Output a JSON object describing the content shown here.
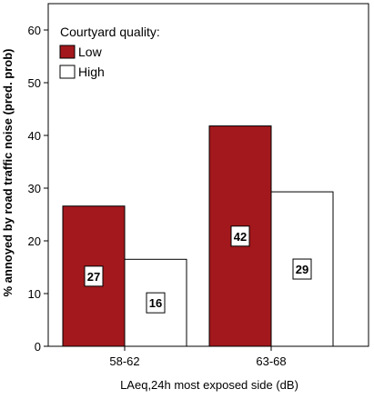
{
  "chart_data": {
    "type": "bar",
    "categories": [
      "58-62",
      "63-68"
    ],
    "series": [
      {
        "name": "Low",
        "values": [
          26.6,
          41.8
        ],
        "labels": [
          "27",
          "42"
        ],
        "color": "#a3181c"
      },
      {
        "name": "High",
        "values": [
          16.5,
          29.3
        ],
        "labels": [
          "16",
          "29"
        ],
        "color": "#ffffff"
      }
    ],
    "legend_title": "Courtyard quality:",
    "legend_position": "top-left",
    "xlabel": "LAeq,24h most exposed side (dB)",
    "ylabel": "% annoyed by road traffic noise (pred. prob)",
    "ylim": [
      0,
      65
    ],
    "yticks": [
      0,
      10,
      20,
      30,
      40,
      50,
      60
    ],
    "grid": false
  }
}
